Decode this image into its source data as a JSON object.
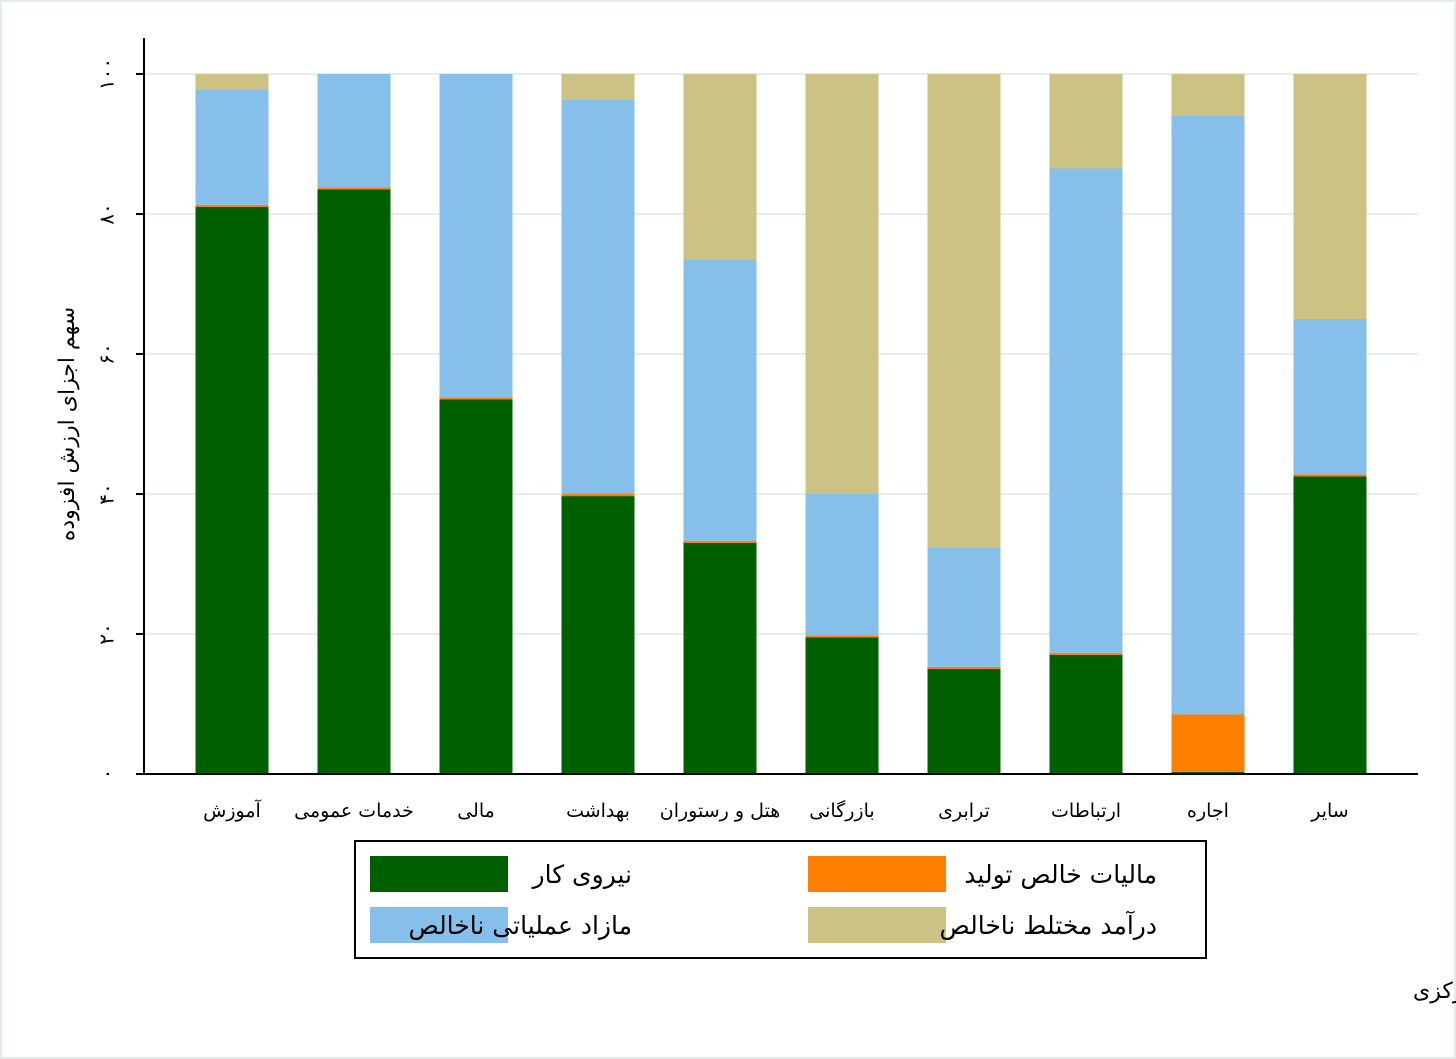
{
  "chart_data": {
    "type": "bar",
    "stacked": true,
    "categories": [
      "آموزش",
      "خدمات عمومی",
      "مالی",
      "بهداشت",
      "هتل و رستوران",
      "بازرگانی",
      "ترابری",
      "ارتباطات",
      "اجاره",
      "سایر"
    ],
    "series": [
      {
        "name": "نیروی کار",
        "color": "#005f00",
        "values": [
          81,
          83.5,
          53.5,
          39.7,
          33,
          19.5,
          15,
          17,
          0.3,
          42.5
        ]
      },
      {
        "name": "مالیات خالص تولید",
        "color": "#ff7f00",
        "values": [
          0.3,
          0.3,
          0.3,
          0.3,
          0.3,
          0.3,
          0.3,
          0.3,
          8.2,
          0.3
        ]
      },
      {
        "name": "مازاد عملیاتی ناخالص",
        "color": "#85bfea",
        "values": [
          16.5,
          16.2,
          46.2,
          56.3,
          40.2,
          20.2,
          17,
          69.2,
          85.5,
          22.2
        ]
      },
      {
        "name": "درآمد مختلط ناخالص",
        "color": "#ccc283",
        "values": [
          2.2,
          0,
          0,
          3.7,
          26.5,
          60,
          67.7,
          13.5,
          6,
          35
        ]
      }
    ],
    "ylabel": "سهم اجزای ارزش افزوده",
    "xlabel": "",
    "ylim": [
      0,
      100
    ],
    "yticks": [
      0,
      20,
      40,
      60,
      80,
      100
    ],
    "ytick_labels": [
      "۰",
      "۲۰",
      "۴۰",
      "۶۰",
      "۸۰",
      "۱۰۰"
    ],
    "grid": true,
    "legend_position": "bottom",
    "legend_order": [
      [
        "نیروی کار",
        "مالیات خالص تولید"
      ],
      [
        "مازاد عملیاتی ناخالص",
        "درآمد مختلط ناخالص"
      ]
    ],
    "source": "منبع: حساب‌های ملی بانک مرکزی"
  }
}
